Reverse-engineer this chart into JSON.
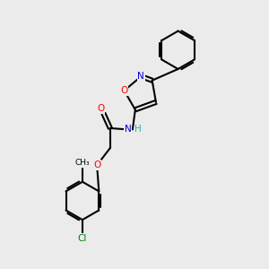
{
  "background_color": "#ebebeb",
  "bond_color": "#000000",
  "atom_colors": {
    "O": "#ff0000",
    "N": "#0000cd",
    "Cl": "#008000",
    "H": "#20b2aa",
    "C": "#000000"
  },
  "figsize": [
    3.0,
    3.0
  ],
  "dpi": 100
}
